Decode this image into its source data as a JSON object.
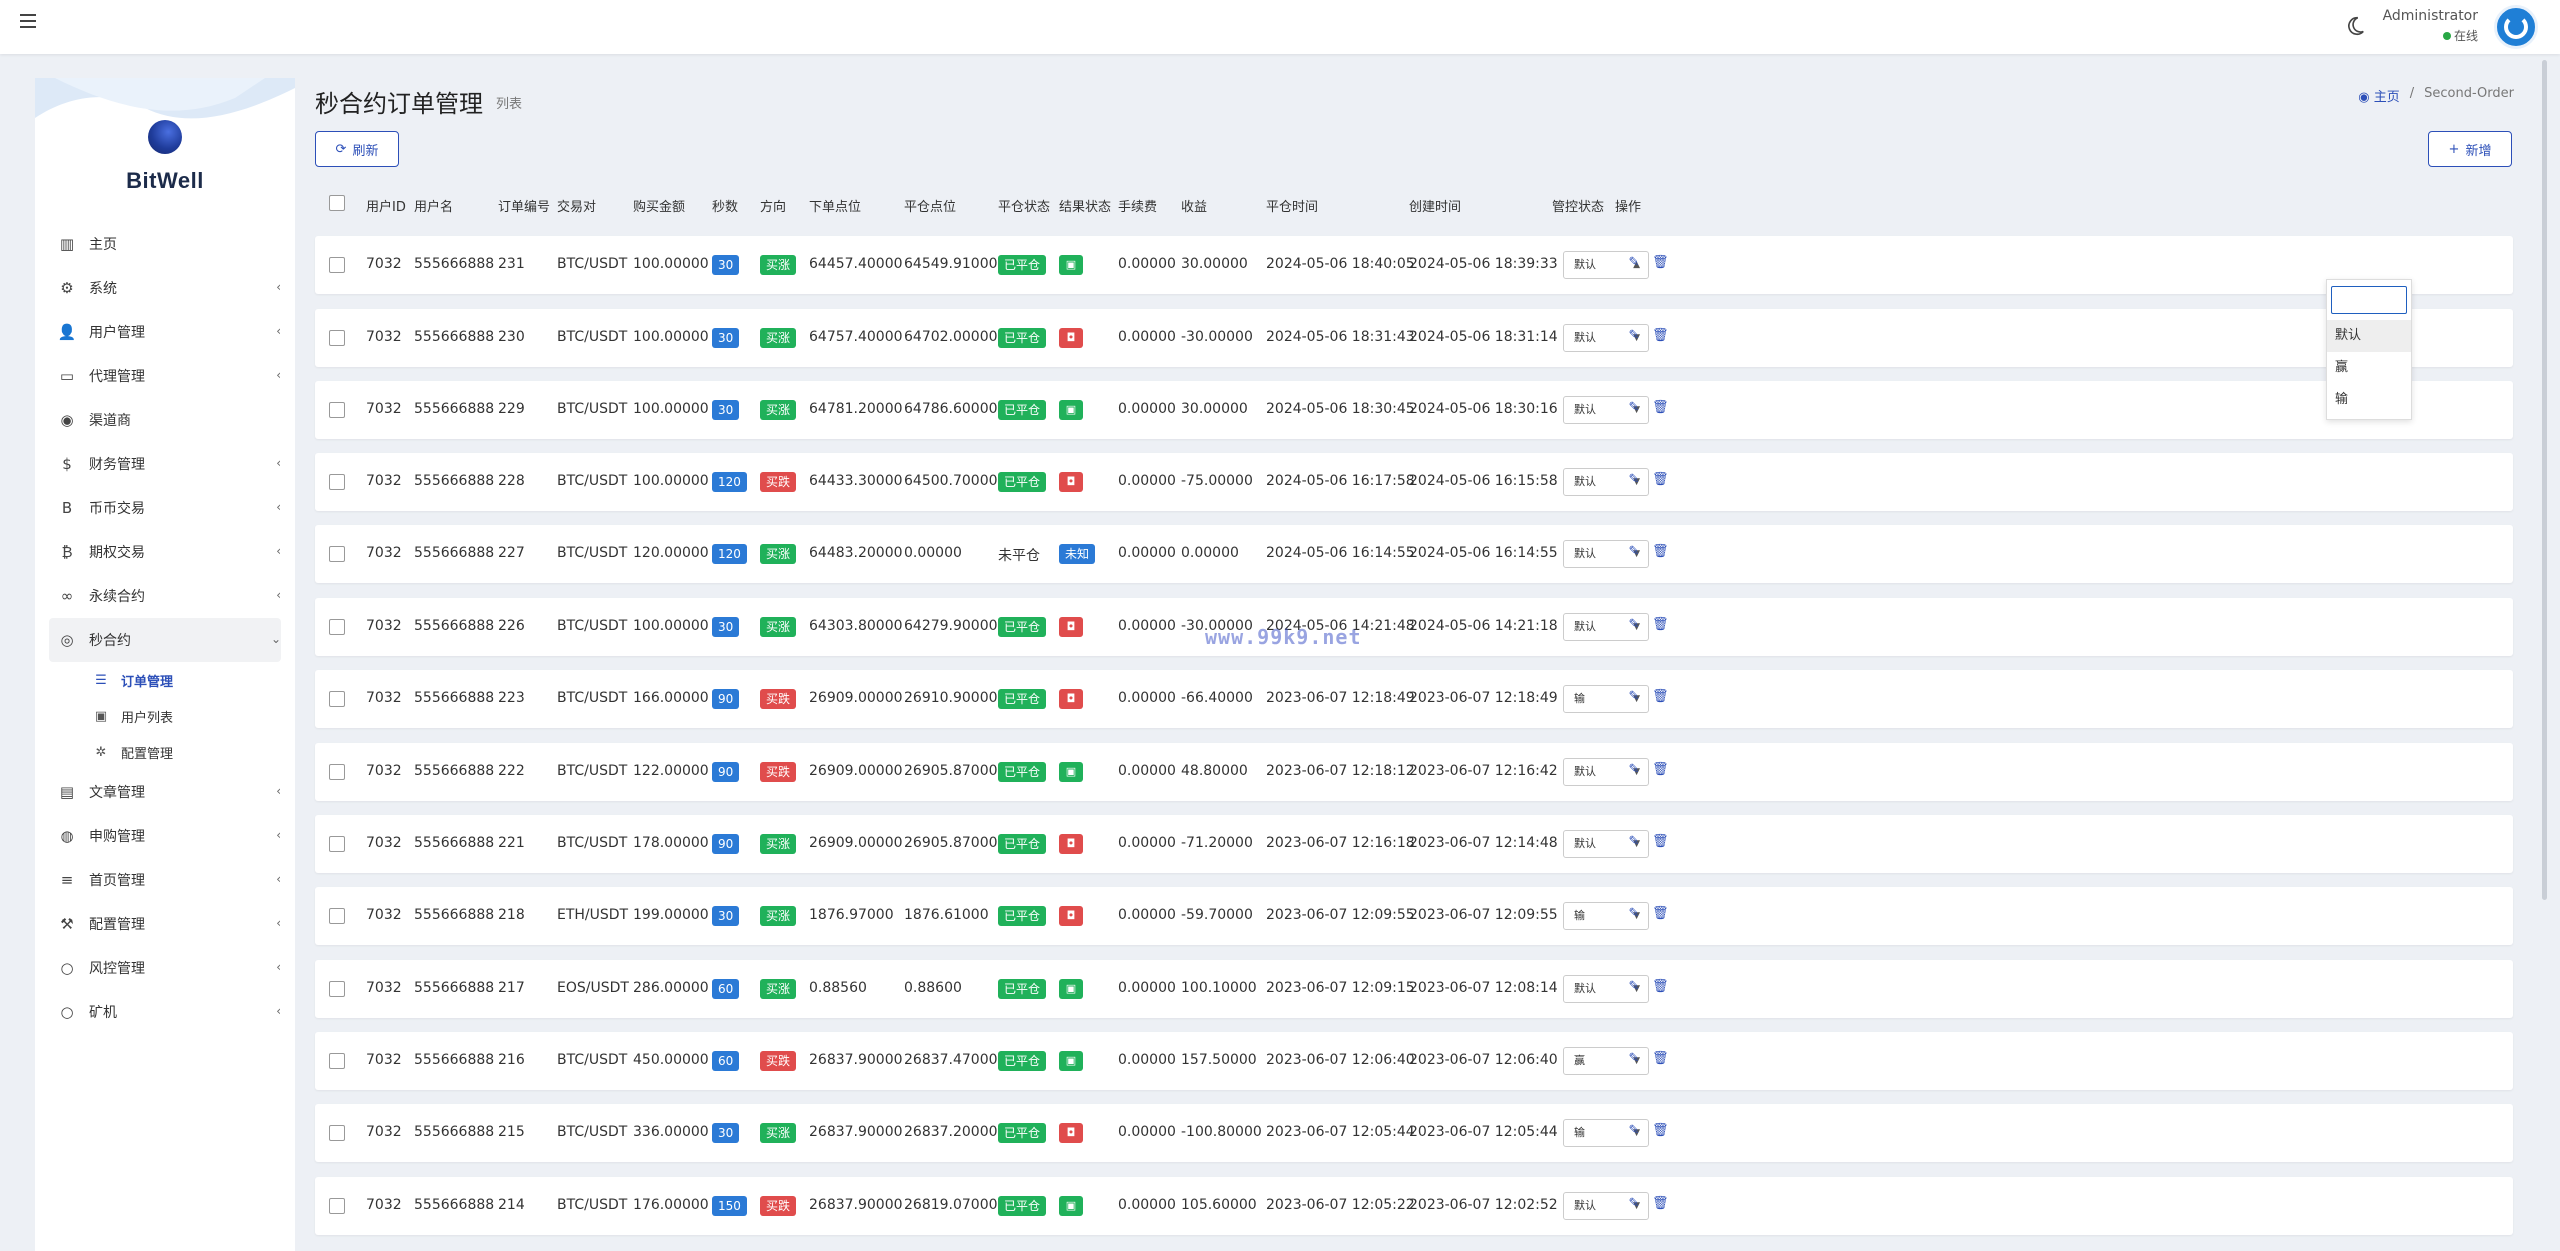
{
  "header": {
    "user_name": "Administrator",
    "user_status": "在线"
  },
  "sidebar": {
    "brand": "BitWell",
    "items": [
      {
        "label": "主页",
        "icon": "dashboard-icon"
      },
      {
        "label": "系统",
        "icon": "gear-icon"
      },
      {
        "label": "用户管理",
        "icon": "user-icon"
      },
      {
        "label": "代理管理",
        "icon": "id-card-icon"
      },
      {
        "label": "渠道商",
        "icon": "user-circle-icon"
      },
      {
        "label": "财务管理",
        "icon": "dollar-icon"
      },
      {
        "label": "币币交易",
        "icon": "bitcoin-b-icon"
      },
      {
        "label": "期权交易",
        "icon": "bitcoin-icon"
      },
      {
        "label": "永续合约",
        "icon": "link-icon"
      },
      {
        "label": "秒合约",
        "icon": "dot-circle-icon"
      }
    ],
    "sub_items": [
      {
        "label": "订单管理",
        "icon": "list-icon"
      },
      {
        "label": "用户列表",
        "icon": "user-square-icon"
      },
      {
        "label": "配置管理",
        "icon": "cog-icon"
      }
    ],
    "items_after": [
      {
        "label": "文章管理",
        "icon": "newspaper-icon"
      },
      {
        "label": "申购管理",
        "icon": "globe-icon"
      },
      {
        "label": "首页管理",
        "icon": "bars-icon"
      },
      {
        "label": "配置管理",
        "icon": "wrench-icon"
      },
      {
        "label": "风控管理",
        "icon": "circle-icon"
      },
      {
        "label": "矿机",
        "icon": "circle-icon"
      }
    ]
  },
  "page": {
    "title": "秒合约订单管理",
    "subtitle": "列表",
    "breadcrumb_home": "主页",
    "breadcrumb_current": "Second-Order",
    "refresh_label": "刷新",
    "add_label": "新增"
  },
  "table": {
    "columns": [
      "用户ID",
      "用户名",
      "订单编号",
      "交易对",
      "购买金额",
      "秒数",
      "方向",
      "下单点位",
      "平仓点位",
      "平仓状态",
      "结果状态",
      "手续费",
      "收益",
      "平仓时间",
      "创建时间",
      "管控状态",
      "操作"
    ],
    "rows": [
      {
        "uid": "7032",
        "username": "555666888",
        "order_no": "231",
        "pair": "BTC/USDT",
        "amount": "100.00000",
        "seconds": "30",
        "direction": "买涨",
        "open": "64457.40000",
        "close": "64549.91000",
        "close_status": "已平仓",
        "result": "win",
        "fee": "0.00000",
        "profit": "30.00000",
        "close_time": "2024-05-06 18:40:05",
        "create_time": "2024-05-06 18:39:33",
        "control": "默认"
      },
      {
        "uid": "7032",
        "username": "555666888",
        "order_no": "230",
        "pair": "BTC/USDT",
        "amount": "100.00000",
        "seconds": "30",
        "direction": "买涨",
        "open": "64757.40000",
        "close": "64702.00000",
        "close_status": "已平仓",
        "result": "lose",
        "fee": "0.00000",
        "profit": "-30.00000",
        "close_time": "2024-05-06 18:31:43",
        "create_time": "2024-05-06 18:31:14",
        "control": "默认"
      },
      {
        "uid": "7032",
        "username": "555666888",
        "order_no": "229",
        "pair": "BTC/USDT",
        "amount": "100.00000",
        "seconds": "30",
        "direction": "买涨",
        "open": "64781.20000",
        "close": "64786.60000",
        "close_status": "已平仓",
        "result": "win",
        "fee": "0.00000",
        "profit": "30.00000",
        "close_time": "2024-05-06 18:30:45",
        "create_time": "2024-05-06 18:30:16",
        "control": "默认"
      },
      {
        "uid": "7032",
        "username": "555666888",
        "order_no": "228",
        "pair": "BTC/USDT",
        "amount": "100.00000",
        "seconds": "120",
        "direction": "买跌",
        "open": "64433.30000",
        "close": "64500.70000",
        "close_status": "已平仓",
        "result": "lose",
        "fee": "0.00000",
        "profit": "-75.00000",
        "close_time": "2024-05-06 16:17:58",
        "create_time": "2024-05-06 16:15:58",
        "control": "默认"
      },
      {
        "uid": "7032",
        "username": "555666888",
        "order_no": "227",
        "pair": "BTC/USDT",
        "amount": "120.00000",
        "seconds": "120",
        "direction": "买涨",
        "open": "64483.20000",
        "close": "0.00000",
        "close_status": "未平仓",
        "result": "未知",
        "fee": "0.00000",
        "profit": "0.00000",
        "close_time": "2024-05-06 16:14:55",
        "create_time": "2024-05-06 16:14:55",
        "control": "默认"
      },
      {
        "uid": "7032",
        "username": "555666888",
        "order_no": "226",
        "pair": "BTC/USDT",
        "amount": "100.00000",
        "seconds": "30",
        "direction": "买涨",
        "open": "64303.80000",
        "close": "64279.90000",
        "close_status": "已平仓",
        "result": "lose",
        "fee": "0.00000",
        "profit": "-30.00000",
        "close_time": "2024-05-06 14:21:48",
        "create_time": "2024-05-06 14:21:18",
        "control": "默认"
      },
      {
        "uid": "7032",
        "username": "555666888",
        "order_no": "223",
        "pair": "BTC/USDT",
        "amount": "166.00000",
        "seconds": "90",
        "direction": "买跌",
        "open": "26909.00000",
        "close": "26910.90000",
        "close_status": "已平仓",
        "result": "lose",
        "fee": "0.00000",
        "profit": "-66.40000",
        "close_time": "2023-06-07 12:18:49",
        "create_time": "2023-06-07 12:18:49",
        "control": "输"
      },
      {
        "uid": "7032",
        "username": "555666888",
        "order_no": "222",
        "pair": "BTC/USDT",
        "amount": "122.00000",
        "seconds": "90",
        "direction": "买跌",
        "open": "26909.00000",
        "close": "26905.87000",
        "close_status": "已平仓",
        "result": "win",
        "fee": "0.00000",
        "profit": "48.80000",
        "close_time": "2023-06-07 12:18:12",
        "create_time": "2023-06-07 12:16:42",
        "control": "默认"
      },
      {
        "uid": "7032",
        "username": "555666888",
        "order_no": "221",
        "pair": "BTC/USDT",
        "amount": "178.00000",
        "seconds": "90",
        "direction": "买涨",
        "open": "26909.00000",
        "close": "26905.87000",
        "close_status": "已平仓",
        "result": "lose",
        "fee": "0.00000",
        "profit": "-71.20000",
        "close_time": "2023-06-07 12:16:18",
        "create_time": "2023-06-07 12:14:48",
        "control": "默认"
      },
      {
        "uid": "7032",
        "username": "555666888",
        "order_no": "218",
        "pair": "ETH/USDT",
        "amount": "199.00000",
        "seconds": "30",
        "direction": "买涨",
        "open": "1876.97000",
        "close": "1876.61000",
        "close_status": "已平仓",
        "result": "lose",
        "fee": "0.00000",
        "profit": "-59.70000",
        "close_time": "2023-06-07 12:09:55",
        "create_time": "2023-06-07 12:09:55",
        "control": "输"
      },
      {
        "uid": "7032",
        "username": "555666888",
        "order_no": "217",
        "pair": "EOS/USDT",
        "amount": "286.00000",
        "seconds": "60",
        "direction": "买涨",
        "open": "0.88560",
        "close": "0.88600",
        "close_status": "已平仓",
        "result": "win",
        "fee": "0.00000",
        "profit": "100.10000",
        "close_time": "2023-06-07 12:09:15",
        "create_time": "2023-06-07 12:08:14",
        "control": "默认"
      },
      {
        "uid": "7032",
        "username": "555666888",
        "order_no": "216",
        "pair": "BTC/USDT",
        "amount": "450.00000",
        "seconds": "60",
        "direction": "买跌",
        "open": "26837.90000",
        "close": "26837.47000",
        "close_status": "已平仓",
        "result": "win",
        "fee": "0.00000",
        "profit": "157.50000",
        "close_time": "2023-06-07 12:06:40",
        "create_time": "2023-06-07 12:06:40",
        "control": "赢"
      },
      {
        "uid": "7032",
        "username": "555666888",
        "order_no": "215",
        "pair": "BTC/USDT",
        "amount": "336.00000",
        "seconds": "30",
        "direction": "买涨",
        "open": "26837.90000",
        "close": "26837.20000",
        "close_status": "已平仓",
        "result": "lose",
        "fee": "0.00000",
        "profit": "-100.80000",
        "close_time": "2023-06-07 12:05:44",
        "create_time": "2023-06-07 12:05:44",
        "control": "输"
      },
      {
        "uid": "7032",
        "username": "555666888",
        "order_no": "214",
        "pair": "BTC/USDT",
        "amount": "176.00000",
        "seconds": "150",
        "direction": "买跌",
        "open": "26837.90000",
        "close": "26819.07000",
        "close_status": "已平仓",
        "result": "win",
        "fee": "0.00000",
        "profit": "105.60000",
        "close_time": "2023-06-07 12:05:22",
        "create_time": "2023-06-07 12:02:52",
        "control": "默认"
      }
    ]
  },
  "dropdown": {
    "options": [
      "默认",
      "赢",
      "输"
    ],
    "selected": "默认"
  },
  "watermark": "www.99k9.net",
  "colors": {
    "primary": "#2c4fb8",
    "badge_blue": "#2b7ad6",
    "badge_green": "#20b15a",
    "badge_red": "#e04c4c"
  }
}
